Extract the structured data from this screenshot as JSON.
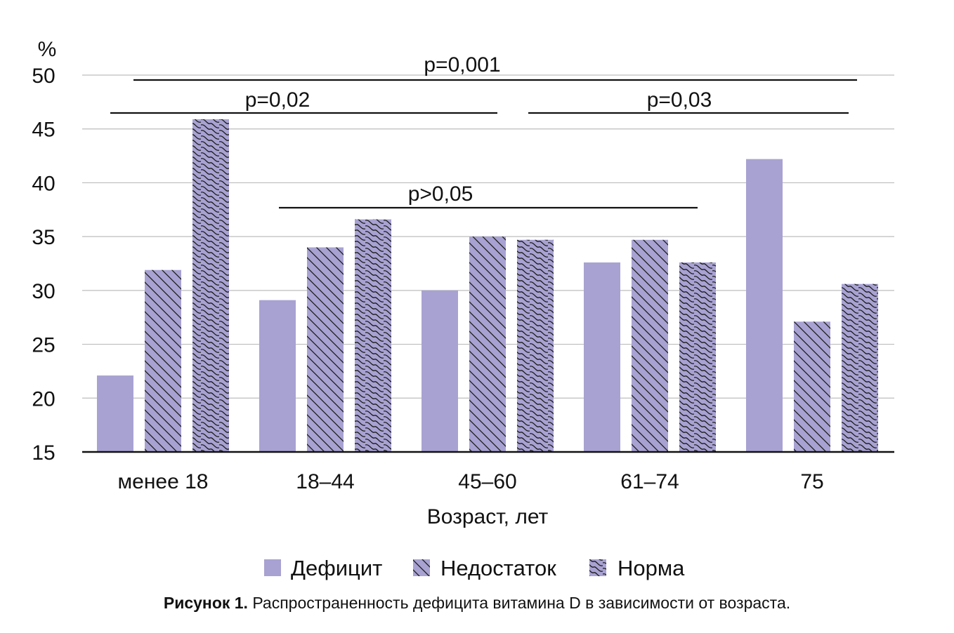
{
  "chart_data": {
    "type": "bar",
    "ylabel": "%",
    "xlabel": "Возраст, лет",
    "ylim": [
      15,
      50
    ],
    "yticks": [
      15,
      20,
      25,
      30,
      35,
      40,
      45,
      50
    ],
    "categories": [
      "менее 18",
      "18–44",
      "45–60",
      "61–74",
      "75"
    ],
    "series": [
      {
        "name": "Дефицит",
        "pattern": "solid",
        "values": [
          22.1,
          29.1,
          30.0,
          32.6,
          42.2
        ]
      },
      {
        "name": "Недостаток",
        "pattern": "diagonal",
        "values": [
          31.9,
          34.0,
          35.0,
          34.7,
          27.1
        ]
      },
      {
        "name": "Норма",
        "pattern": "wavy",
        "values": [
          45.9,
          36.6,
          34.7,
          32.6,
          30.6
        ]
      }
    ],
    "significance": [
      {
        "label": "p=0,001",
        "from_group": 0,
        "to_group": 4
      },
      {
        "label": "p=0,02",
        "from_group": 0,
        "to_group": 2
      },
      {
        "label": "p=0,03",
        "from_group": 2,
        "to_group": 4
      },
      {
        "label": "p>0,05",
        "from_group": 1,
        "to_group": 3
      }
    ],
    "grid": true,
    "legend_position": "bottom"
  },
  "colors": {
    "bar": "#a8a2d2",
    "grid": "#bdbdbd",
    "axis": "#111111",
    "hatch": "#1a1a1a"
  },
  "caption": {
    "bold": "Рисунок 1.",
    "text": " Распространенность дефицита витамина D в зависимости от возраста."
  }
}
